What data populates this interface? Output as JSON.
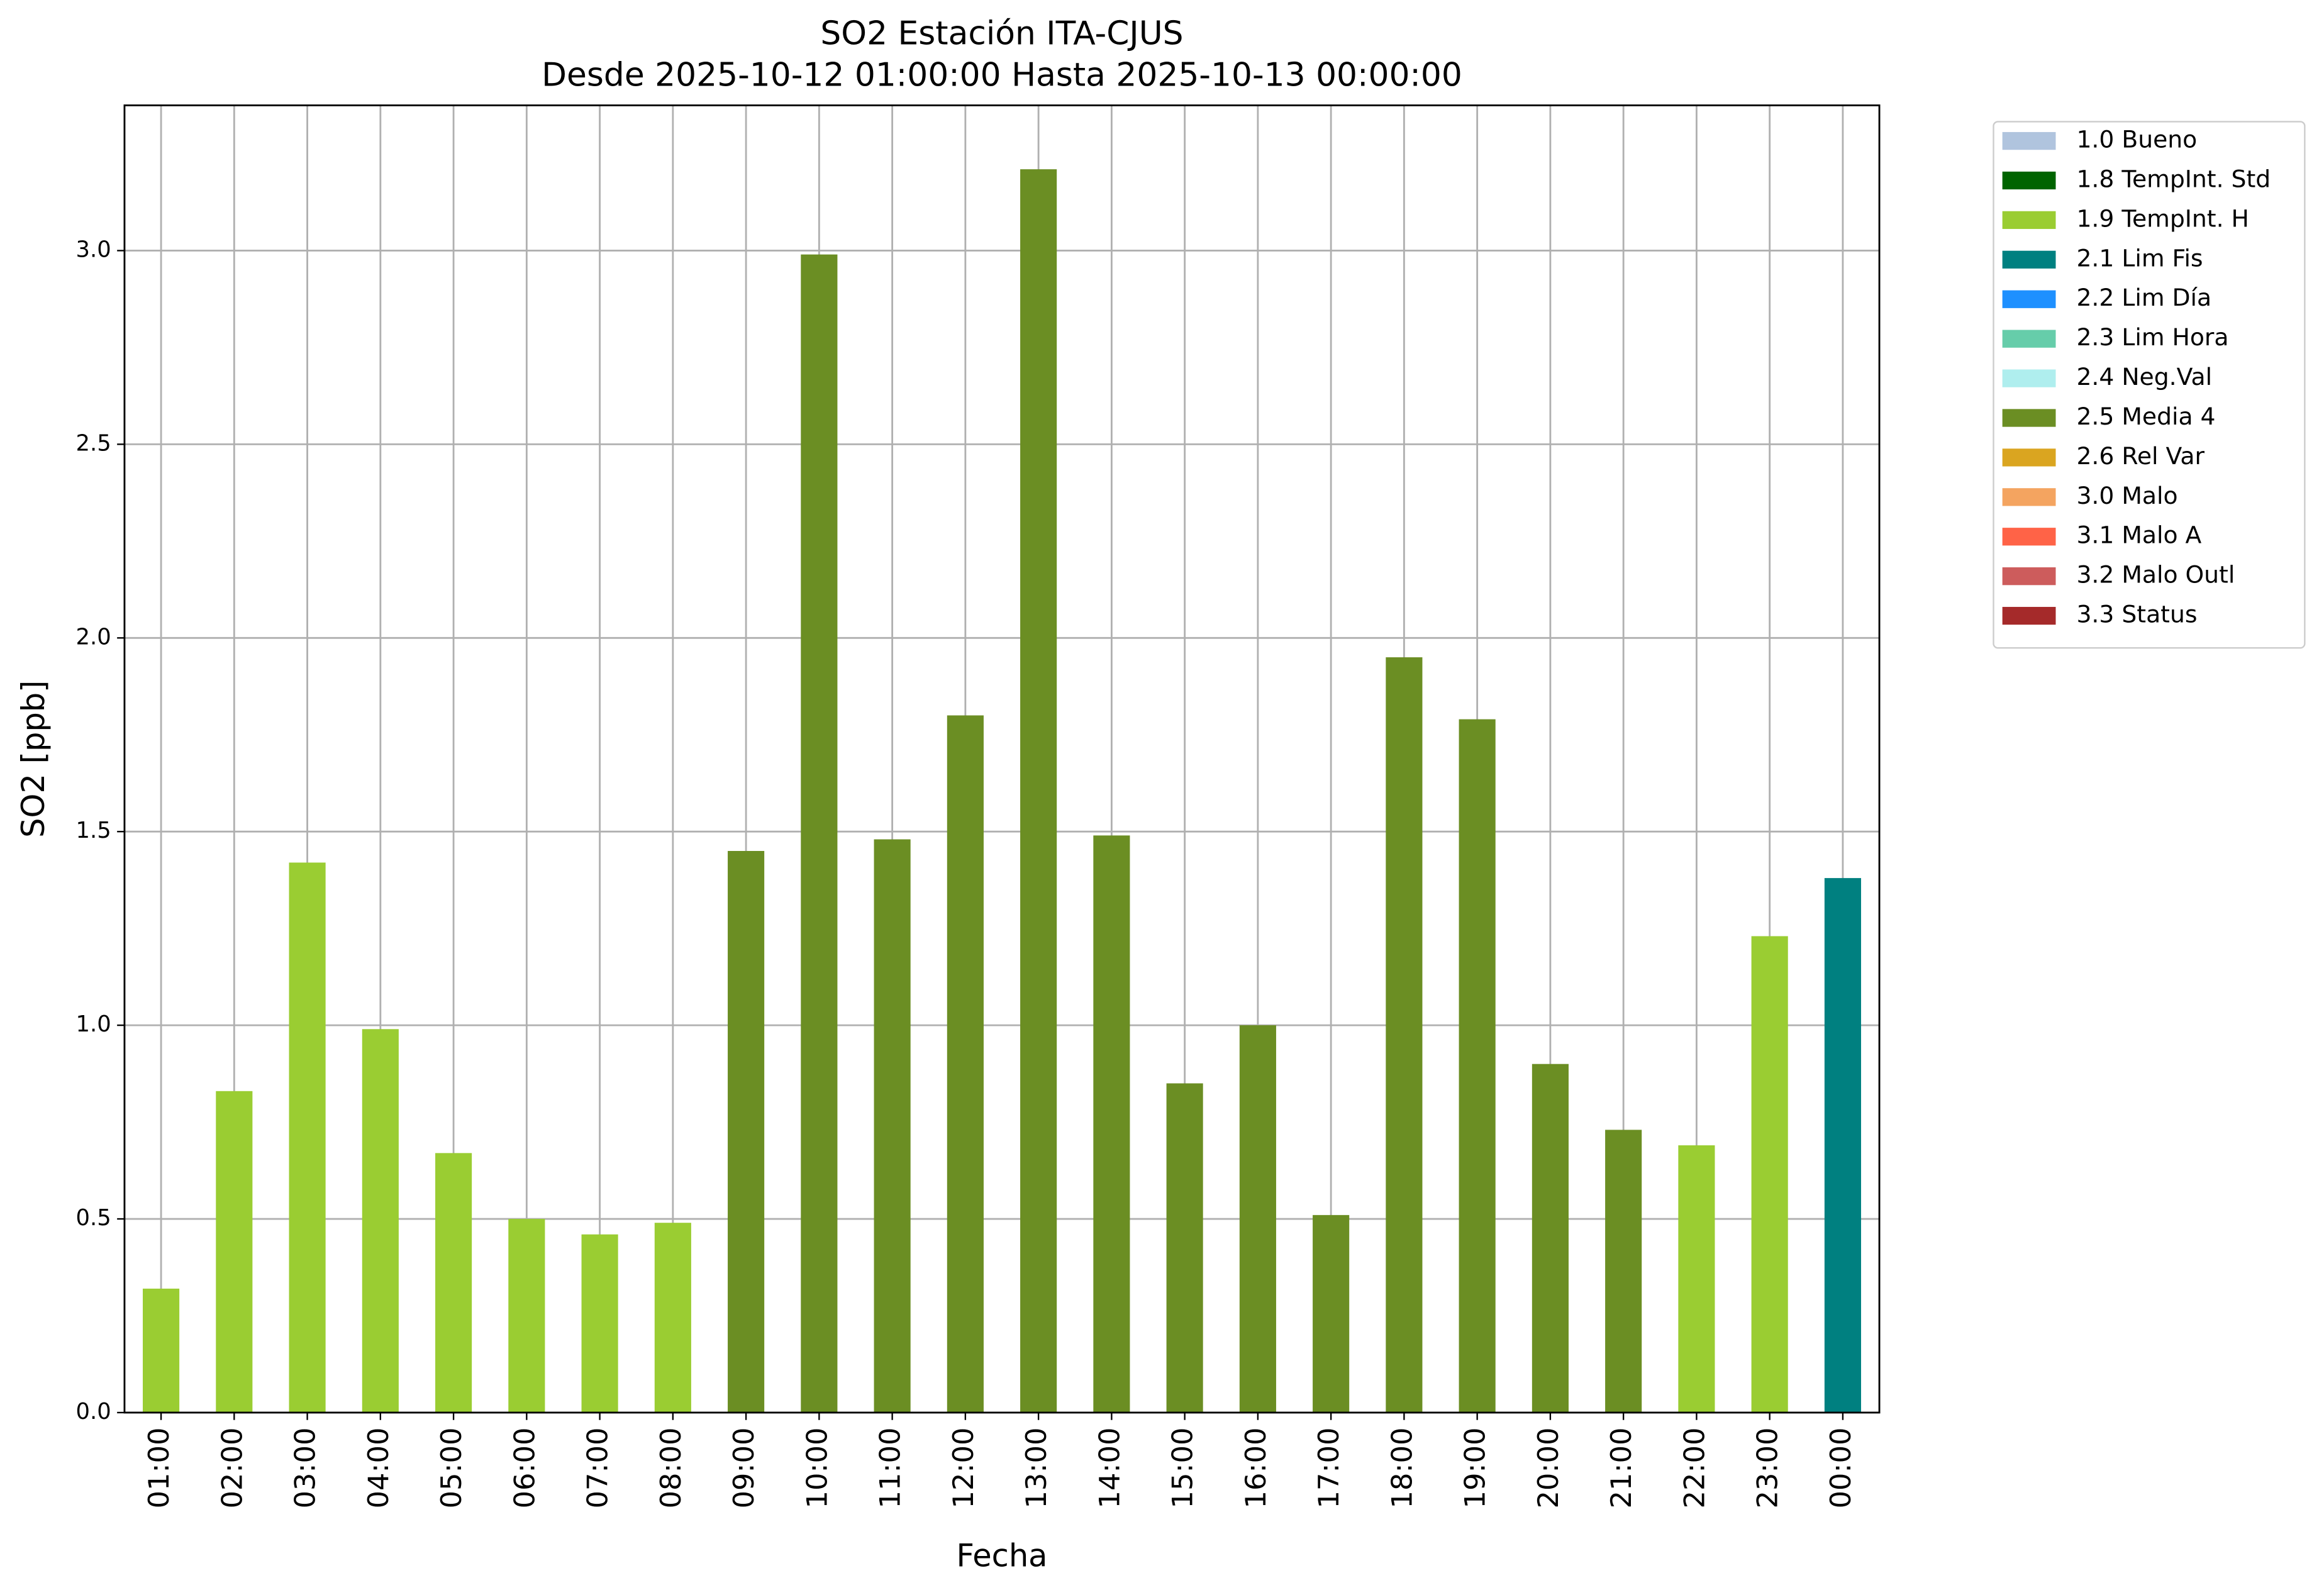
{
  "chart_data": {
    "type": "bar",
    "title": "SO2 Estación ITA-CJUS",
    "subtitle": "Desde 2025-10-12 01:00:00 Hasta 2025-10-13 00:00:00",
    "x_label": "Fecha",
    "y_label": "SO2 [ppb]",
    "categories": [
      "01:00",
      "02:00",
      "03:00",
      "04:00",
      "05:00",
      "06:00",
      "07:00",
      "08:00",
      "09:00",
      "10:00",
      "11:00",
      "12:00",
      "13:00",
      "14:00",
      "15:00",
      "16:00",
      "17:00",
      "18:00",
      "19:00",
      "20:00",
      "21:00",
      "22:00",
      "23:00",
      "00:00"
    ],
    "series": [
      {
        "name": "1.0 Bueno",
        "color": "#b0c4de",
        "values": [
          null,
          null,
          null,
          null,
          null,
          null,
          null,
          null,
          null,
          null,
          null,
          null,
          null,
          null,
          null,
          null,
          null,
          null,
          null,
          null,
          null,
          null,
          null,
          null
        ]
      },
      {
        "name": "1.8 TempInt. Std",
        "color": "#006400",
        "values": [
          null,
          null,
          null,
          null,
          null,
          null,
          null,
          null,
          null,
          null,
          null,
          null,
          null,
          null,
          null,
          null,
          null,
          null,
          null,
          null,
          null,
          null,
          null,
          null
        ]
      },
      {
        "name": "1.9 TempInt. H",
        "color": "#9acd32",
        "values": [
          0.32,
          0.83,
          1.42,
          0.99,
          0.67,
          0.5,
          0.46,
          0.49,
          null,
          null,
          null,
          null,
          null,
          null,
          null,
          null,
          null,
          null,
          null,
          null,
          null,
          0.69,
          1.23,
          null
        ]
      },
      {
        "name": "2.1 Lim Fis",
        "color": "#008080",
        "values": [
          null,
          null,
          null,
          null,
          null,
          null,
          null,
          null,
          null,
          null,
          null,
          null,
          null,
          null,
          null,
          null,
          null,
          null,
          null,
          null,
          null,
          null,
          null,
          1.38
        ]
      },
      {
        "name": "2.2 Lim Día",
        "color": "#1e90ff",
        "values": [
          null,
          null,
          null,
          null,
          null,
          null,
          null,
          null,
          null,
          null,
          null,
          null,
          null,
          null,
          null,
          null,
          null,
          null,
          null,
          null,
          null,
          null,
          null,
          null
        ]
      },
      {
        "name": "2.3 Lim Hora",
        "color": "#66cdaa",
        "values": [
          null,
          null,
          null,
          null,
          null,
          null,
          null,
          null,
          null,
          null,
          null,
          null,
          null,
          null,
          null,
          null,
          null,
          null,
          null,
          null,
          null,
          null,
          null,
          null
        ]
      },
      {
        "name": "2.4 Neg.Val",
        "color": "#afeeee",
        "values": [
          null,
          null,
          null,
          null,
          null,
          null,
          null,
          null,
          null,
          null,
          null,
          null,
          null,
          null,
          null,
          null,
          null,
          null,
          null,
          null,
          null,
          null,
          null,
          null
        ]
      },
      {
        "name": "2.5 Media 4",
        "color": "#6b8e23",
        "values": [
          null,
          null,
          null,
          null,
          null,
          null,
          null,
          null,
          1.45,
          2.99,
          1.48,
          1.8,
          3.21,
          1.49,
          0.85,
          1.0,
          0.51,
          1.95,
          1.79,
          0.9,
          0.73,
          null,
          null,
          null
        ]
      },
      {
        "name": "2.6 Rel Var",
        "color": "#daa520",
        "values": [
          null,
          null,
          null,
          null,
          null,
          null,
          null,
          null,
          null,
          null,
          null,
          null,
          null,
          null,
          null,
          null,
          null,
          null,
          null,
          null,
          null,
          null,
          null,
          null
        ]
      },
      {
        "name": "3.0 Malo",
        "color": "#f4a460",
        "values": [
          null,
          null,
          null,
          null,
          null,
          null,
          null,
          null,
          null,
          null,
          null,
          null,
          null,
          null,
          null,
          null,
          null,
          null,
          null,
          null,
          null,
          null,
          null,
          null
        ]
      },
      {
        "name": "3.1 Malo A",
        "color": "#ff6347",
        "values": [
          null,
          null,
          null,
          null,
          null,
          null,
          null,
          null,
          null,
          null,
          null,
          null,
          null,
          null,
          null,
          null,
          null,
          null,
          null,
          null,
          null,
          null,
          null,
          null
        ]
      },
      {
        "name": "3.2 Malo Outl",
        "color": "#cd5c5c",
        "values": [
          null,
          null,
          null,
          null,
          null,
          null,
          null,
          null,
          null,
          null,
          null,
          null,
          null,
          null,
          null,
          null,
          null,
          null,
          null,
          null,
          null,
          null,
          null,
          null
        ]
      },
      {
        "name": "3.3 Status",
        "color": "#a52a2a",
        "values": [
          null,
          null,
          null,
          null,
          null,
          null,
          null,
          null,
          null,
          null,
          null,
          null,
          null,
          null,
          null,
          null,
          null,
          null,
          null,
          null,
          null,
          null,
          null,
          null
        ]
      }
    ],
    "ylim": [
      0,
      3.375
    ],
    "yticks": [
      {
        "value": 0,
        "label": "0.0"
      },
      0.5,
      {
        "value": 1,
        "label": "1.0"
      },
      1.5,
      {
        "value": 2,
        "label": "2.0"
      },
      2.5,
      {
        "value": 3,
        "label": "3.0"
      }
    ],
    "grid": true,
    "legend": "outside-right"
  }
}
